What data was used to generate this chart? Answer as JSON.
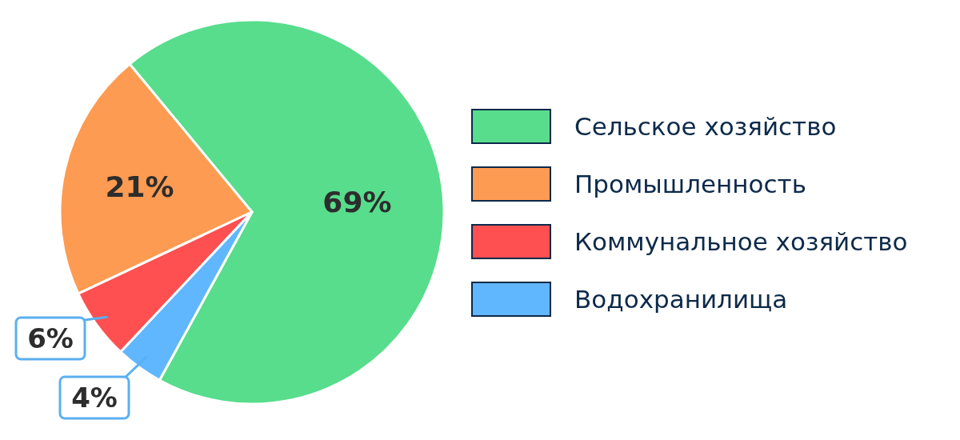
{
  "chart_data": {
    "type": "pie",
    "categories": [
      "Сельское хозяйство",
      "Промышленность",
      "Коммунальное хозяйство",
      "Водохранилища"
    ],
    "values": [
      69,
      21,
      6,
      4
    ],
    "colors": [
      "#57dd8c",
      "#fd9b52",
      "#fe4f51",
      "#60b7fe"
    ],
    "value_labels": [
      "69%",
      "21%",
      "6%",
      "4%"
    ],
    "legend": "right"
  }
}
